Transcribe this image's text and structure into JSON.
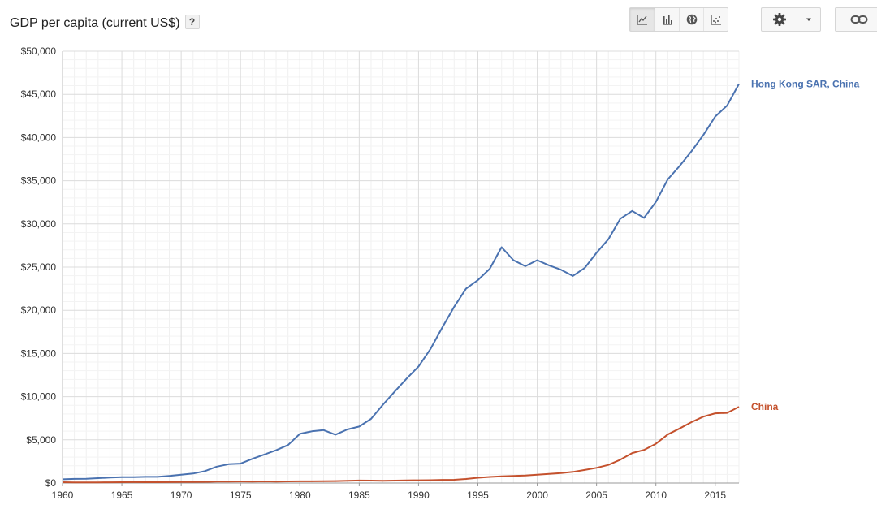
{
  "header": {
    "title": "GDP per capita (current US$)",
    "help_label": "?",
    "views": [
      {
        "icon": "line-chart-icon",
        "active": true
      },
      {
        "icon": "bar-chart-icon",
        "active": false
      },
      {
        "icon": "globe-icon",
        "active": false
      },
      {
        "icon": "scatter-chart-icon",
        "active": false
      }
    ],
    "settings_icon": "gear-icon",
    "dropdown_icon": "caret-down-icon",
    "link_icon": "link-icon"
  },
  "chart_data": {
    "type": "line",
    "title": "GDP per capita (current US$)",
    "xlabel": "",
    "ylabel": "",
    "xlim": [
      1960,
      2017
    ],
    "ylim": [
      0,
      50000
    ],
    "x_ticks": [
      1960,
      1965,
      1970,
      1975,
      1980,
      1985,
      1990,
      1995,
      2000,
      2005,
      2010,
      2015
    ],
    "y_ticks": [
      0,
      5000,
      10000,
      15000,
      20000,
      25000,
      30000,
      35000,
      40000,
      45000,
      50000
    ],
    "y_tick_labels": [
      "$0",
      "$5,000",
      "$10,000",
      "$15,000",
      "$20,000",
      "$25,000",
      "$30,000",
      "$35,000",
      "$40,000",
      "$45,000",
      "$50,000"
    ],
    "grid": true,
    "legend": "inline-right",
    "x": [
      1960,
      1961,
      1962,
      1963,
      1964,
      1965,
      1966,
      1967,
      1968,
      1969,
      1970,
      1971,
      1972,
      1973,
      1974,
      1975,
      1976,
      1977,
      1978,
      1979,
      1980,
      1981,
      1982,
      1983,
      1984,
      1985,
      1986,
      1987,
      1988,
      1989,
      1990,
      1991,
      1992,
      1993,
      1994,
      1995,
      1996,
      1997,
      1998,
      1999,
      2000,
      2001,
      2002,
      2003,
      2004,
      2005,
      2006,
      2007,
      2008,
      2009,
      2010,
      2011,
      2012,
      2013,
      2014,
      2015,
      2016,
      2017
    ],
    "series": [
      {
        "name": "Hong Kong SAR, China",
        "color": "#4a72b0",
        "values": [
          430,
          480,
          500,
          560,
          630,
          680,
          690,
          710,
          710,
          830,
          960,
          1100,
          1380,
          1900,
          2180,
          2250,
          2800,
          3300,
          3800,
          4400,
          5700,
          5990,
          6130,
          5600,
          6200,
          6540,
          7430,
          9070,
          10600,
          12100,
          13500,
          15500,
          18000,
          20400,
          22500,
          23500,
          24800,
          27300,
          25800,
          25100,
          25800,
          25200,
          24700,
          23980,
          24900,
          26650,
          28220,
          30600,
          31500,
          30700,
          32550,
          35150,
          36700,
          38400,
          40300,
          42430,
          43700,
          46200
        ]
      },
      {
        "name": "China",
        "color": "#c4512d",
        "values": [
          90,
          76,
          71,
          74,
          85,
          98,
          104,
          97,
          91,
          100,
          112,
          118,
          132,
          157,
          160,
          178,
          165,
          185,
          156,
          184,
          195,
          197,
          203,
          225,
          251,
          294,
          282,
          252,
          283,
          310,
          318,
          333,
          366,
          377,
          473,
          610,
          709,
          782,
          829,
          873,
          959,
          1053,
          1149,
          1289,
          1509,
          1753,
          2099,
          2694,
          3468,
          3832,
          4550,
          5618,
          6317,
          7051,
          7684,
          8069,
          8117,
          8827
        ]
      }
    ]
  }
}
